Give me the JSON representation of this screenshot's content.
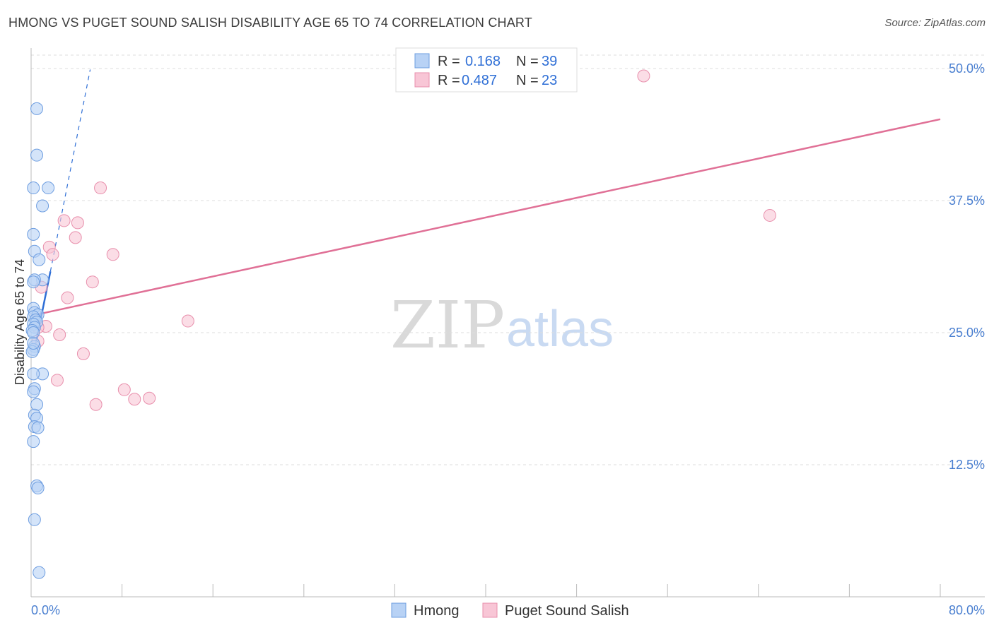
{
  "title": "HMONG VS PUGET SOUND SALISH DISABILITY AGE 65 TO 74 CORRELATION CHART",
  "source": "Source: ZipAtlas.com",
  "watermark": {
    "zip": "ZIP",
    "atlas": "atlas"
  },
  "colors": {
    "hmong_fill": "#b8d2f5",
    "hmong_stroke": "#6d9de0",
    "hmong_line": "#2f6fd6",
    "salish_fill": "#f8c6d6",
    "salish_stroke": "#e88fac",
    "salish_line": "#e07096",
    "axis_label": "#4a7fd0",
    "grid": "#dddddd"
  },
  "legend": {
    "rows": [
      {
        "r_label": "R =",
        "r_value": "0.168",
        "n_label": "N =",
        "n_value": "39"
      },
      {
        "r_label": "R =",
        "r_value": "0.487",
        "n_label": "N =",
        "n_value": "23"
      }
    ]
  },
  "bottom_legend": [
    "Hmong",
    "Puget Sound Salish"
  ],
  "chart_data": {
    "type": "scatter",
    "title": "HMONG VS PUGET SOUND SALISH DISABILITY AGE 65 TO 74 CORRELATION CHART",
    "xlabel": "",
    "ylabel": "Disability Age 65 to 74",
    "xlim": [
      0,
      80
    ],
    "ylim": [
      0,
      50
    ],
    "x_tick_labels": [
      "0.0%",
      "80.0%"
    ],
    "y_ticks": [
      12.5,
      25.0,
      37.5,
      50.0
    ],
    "y_tick_labels": [
      "12.5%",
      "25.0%",
      "37.5%",
      "50.0%"
    ],
    "grid": "horizontal dashed",
    "legend_position": "top-center",
    "series": [
      {
        "name": "Hmong",
        "r": 0.168,
        "n": 39,
        "points": [
          [
            0.5,
            46.2
          ],
          [
            0.5,
            41.8
          ],
          [
            0.2,
            38.7
          ],
          [
            1.5,
            38.7
          ],
          [
            1.0,
            37.0
          ],
          [
            0.2,
            34.3
          ],
          [
            0.3,
            32.7
          ],
          [
            0.7,
            31.9
          ],
          [
            1.0,
            30.0
          ],
          [
            0.3,
            30.0
          ],
          [
            0.2,
            29.8
          ],
          [
            0.2,
            27.3
          ],
          [
            0.3,
            26.9
          ],
          [
            0.6,
            26.7
          ],
          [
            0.2,
            26.5
          ],
          [
            0.4,
            26.2
          ],
          [
            0.5,
            26.0
          ],
          [
            0.2,
            25.8
          ],
          [
            0.3,
            25.5
          ],
          [
            0.1,
            25.2
          ],
          [
            0.2,
            25.0
          ],
          [
            0.3,
            23.7
          ],
          [
            0.2,
            23.4
          ],
          [
            0.1,
            23.2
          ],
          [
            1.0,
            21.1
          ],
          [
            0.2,
            21.1
          ],
          [
            0.3,
            19.7
          ],
          [
            0.2,
            19.4
          ],
          [
            0.5,
            18.2
          ],
          [
            0.3,
            17.2
          ],
          [
            0.5,
            16.9
          ],
          [
            0.3,
            16.1
          ],
          [
            0.6,
            16.0
          ],
          [
            0.2,
            14.7
          ],
          [
            0.5,
            10.5
          ],
          [
            0.6,
            10.3
          ],
          [
            0.3,
            7.3
          ],
          [
            0.7,
            2.3
          ],
          [
            0.2,
            24.0
          ]
        ],
        "trend": {
          "x": [
            0.3,
            1.7
          ],
          "y": [
            23.4,
            30.8
          ],
          "dashed_extension_to": [
            5.2,
            49.9
          ]
        }
      },
      {
        "name": "Puget Sound Salish",
        "r": 0.487,
        "n": 23,
        "points": [
          [
            53.9,
            49.3
          ],
          [
            6.1,
            38.7
          ],
          [
            65.0,
            36.1
          ],
          [
            2.9,
            35.6
          ],
          [
            4.1,
            35.4
          ],
          [
            3.9,
            34.0
          ],
          [
            1.6,
            33.1
          ],
          [
            1.9,
            32.4
          ],
          [
            7.2,
            32.4
          ],
          [
            5.4,
            29.8
          ],
          [
            0.9,
            29.3
          ],
          [
            3.2,
            28.3
          ],
          [
            13.8,
            26.1
          ],
          [
            1.3,
            25.6
          ],
          [
            0.6,
            25.5
          ],
          [
            2.5,
            24.8
          ],
          [
            0.6,
            24.2
          ],
          [
            4.6,
            23.0
          ],
          [
            2.3,
            20.5
          ],
          [
            8.2,
            19.6
          ],
          [
            9.1,
            18.7
          ],
          [
            10.4,
            18.8
          ],
          [
            5.7,
            18.2
          ]
        ],
        "trend": {
          "x": [
            0.0,
            80.0
          ],
          "y": [
            26.6,
            45.2
          ]
        }
      }
    ]
  }
}
